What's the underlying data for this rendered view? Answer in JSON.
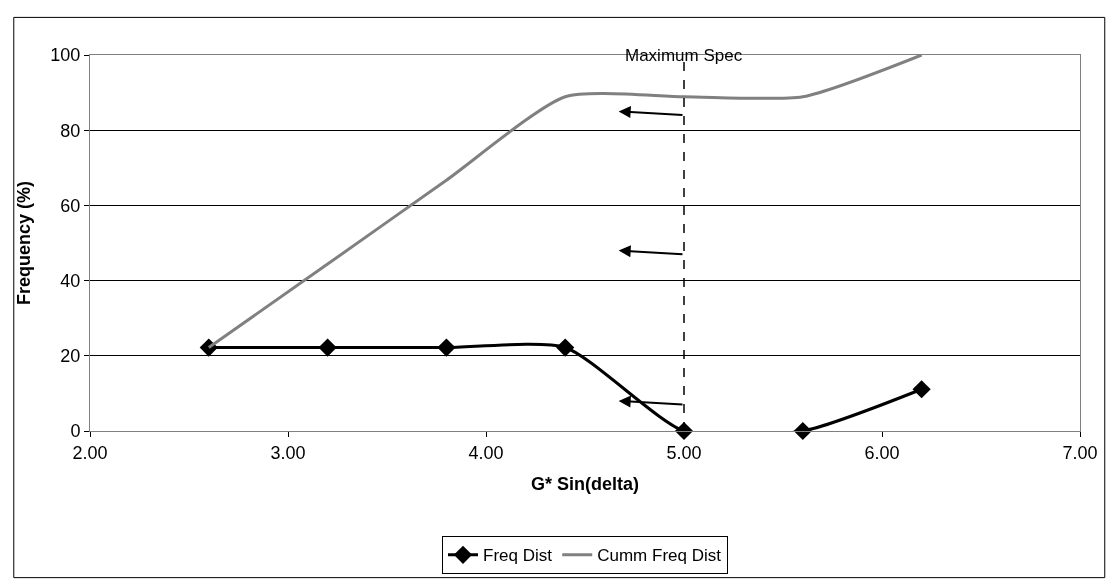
{
  "chart_data": {
    "type": "line",
    "xlabel": "G* Sin(delta)",
    "ylabel": "Frequency (%)",
    "x": [
      2.6,
      3.2,
      3.8,
      4.4,
      5.0,
      5.6,
      6.2
    ],
    "series": [
      {
        "name": "Freq Dist",
        "color": "#000000",
        "values": [
          22.2,
          22.2,
          22.2,
          22.2,
          0,
          0,
          11.1
        ],
        "marker": "diamond"
      },
      {
        "name": "Cumm Freq Dist",
        "color": "#808080",
        "values": [
          22.2,
          44.4,
          66.7,
          88.9,
          88.9,
          88.9,
          100
        ],
        "marker": "none"
      }
    ],
    "xlim": [
      2,
      7
    ],
    "xticks": [
      {
        "value": 2,
        "label": "2.00"
      },
      {
        "value": 3,
        "label": "3.00"
      },
      {
        "value": 4,
        "label": "4.00"
      },
      {
        "value": 5,
        "label": "5.00"
      },
      {
        "value": 6,
        "label": "6.00"
      },
      {
        "value": 7,
        "label": "7.00"
      }
    ],
    "ylim": [
      0,
      100
    ],
    "yticks": [
      0,
      20,
      40,
      60,
      80,
      100
    ],
    "ref_lines": [
      {
        "axis": "x",
        "value": 5.0,
        "label": "Maximum Spec",
        "line_style": "dashed",
        "color": "#000000"
      }
    ],
    "grid": "y",
    "legend": "bottom"
  }
}
